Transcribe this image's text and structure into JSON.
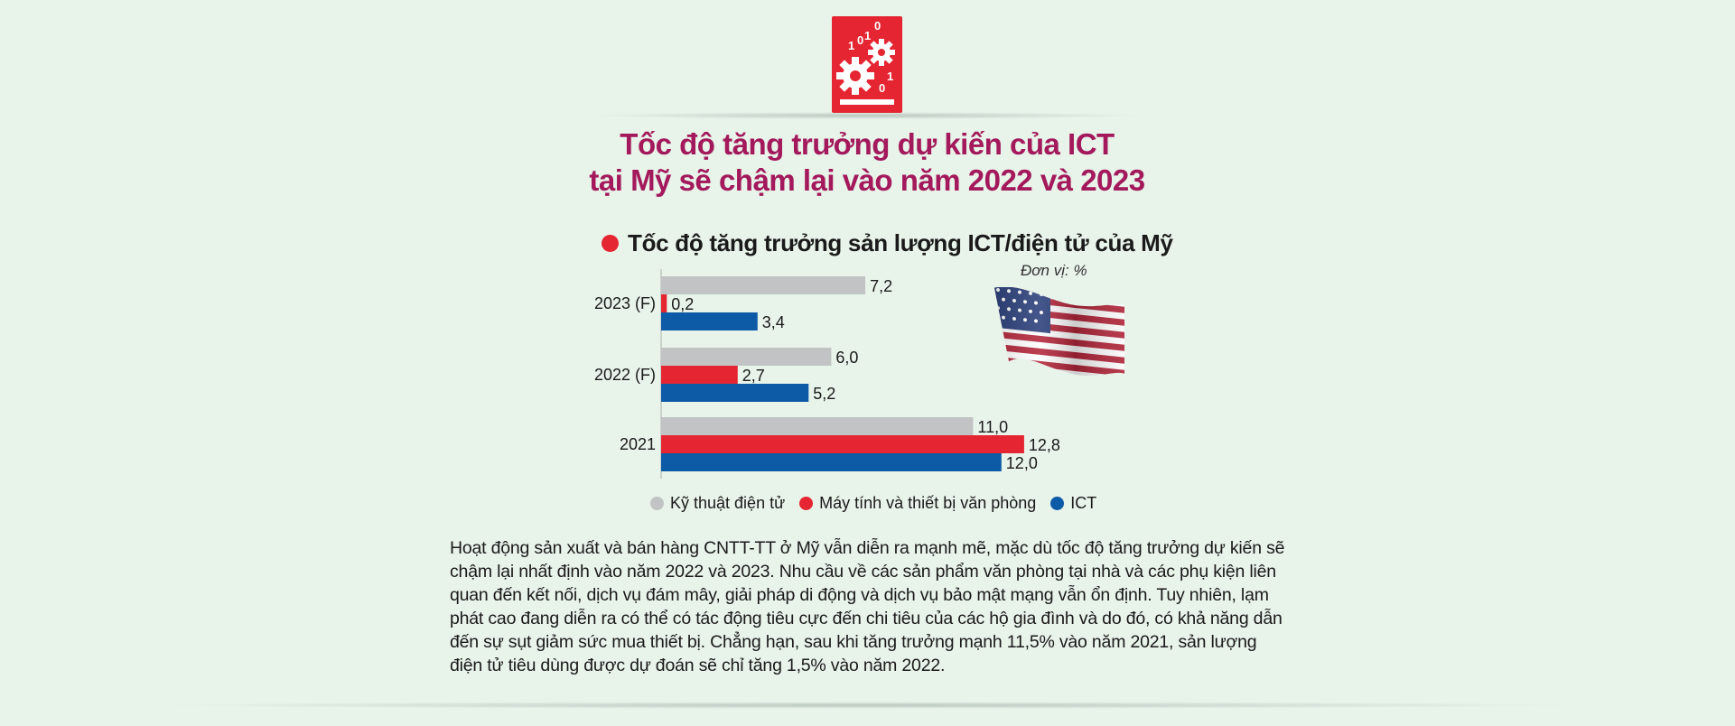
{
  "header": {
    "icon_name": "binary-gears-icon",
    "icon_digits": [
      "1",
      "0",
      "1",
      "0",
      "1",
      "0"
    ],
    "title_line1": "Tốc độ tăng trưởng dự kiến của ICT",
    "title_line2": "tại Mỹ sẽ chậm lại vào năm 2022 và 2023"
  },
  "colors": {
    "title": "#a3195b",
    "accent_red": "#e52532",
    "electronics": "#c2c3c5",
    "computers": "#e52532",
    "ict": "#0d5aa7",
    "background": "#e8f3ea"
  },
  "chart_data": {
    "type": "bar",
    "orientation": "horizontal",
    "title": "Tốc độ tăng trưởng sản lượng ICT/điện tử của Mỹ",
    "unit_label": "Đơn vị: %",
    "categories": [
      "2023 (F)",
      "2022 (F)",
      "2021"
    ],
    "series": [
      {
        "name": "Kỹ thuật điện tử",
        "values": [
          7.2,
          6.0,
          11.0
        ],
        "labels": [
          "7,2",
          "6,0",
          "11,0"
        ]
      },
      {
        "name": "Máy tính và thiết bị văn phòng",
        "values": [
          0.2,
          2.7,
          12.8
        ],
        "labels": [
          "0,2",
          "2,7",
          "12,8"
        ]
      },
      {
        "name": "ICT",
        "values": [
          3.4,
          5.2,
          12.0
        ],
        "labels": [
          "3,4",
          "5,2",
          "12,0"
        ]
      }
    ],
    "xlim": [
      0,
      13
    ],
    "grid": false,
    "legend_position": "bottom"
  },
  "flag": {
    "icon_name": "us-flag-icon"
  },
  "body_text": "Hoạt động sản xuất và bán hàng CNTT-TT ở Mỹ vẫn diễn ra mạnh mẽ, mặc dù tốc độ tăng trưởng dự kiến sẽ chậm lại nhất định vào năm 2022 và 2023. Nhu cầu về các sản phẩm văn phòng tại nhà và các phụ kiện liên quan đến kết nối, dịch vụ đám mây, giải pháp di động và dịch vụ bảo mật mạng vẫn ổn định. Tuy nhiên, lạm phát cao đang diễn ra có thể có tác động tiêu cực đến chi tiêu của các hộ gia đình và do đó, có khả năng dẫn đến sự sụt giảm sức mua thiết bị. Chẳng hạn, sau khi tăng trưởng mạnh 11,5% vào năm 2021, sản lượng điện tử tiêu dùng được dự đoán sẽ chỉ tăng 1,5% vào năm 2022."
}
